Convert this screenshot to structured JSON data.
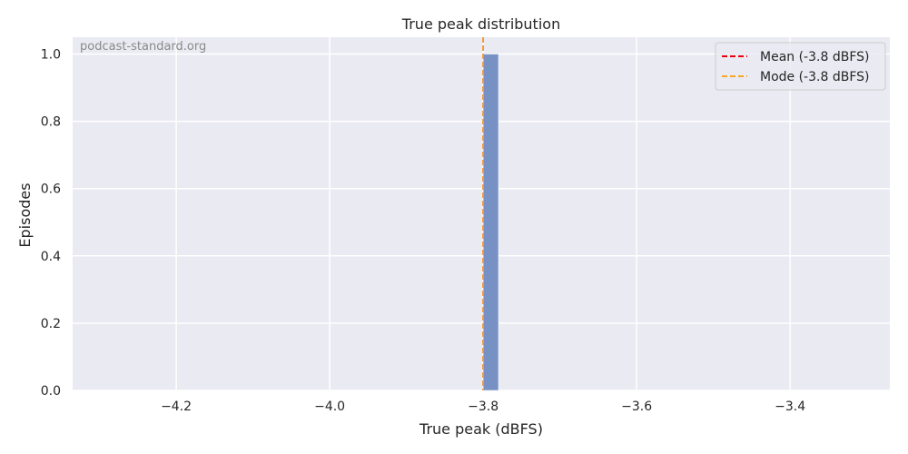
{
  "chart_data": {
    "type": "bar",
    "title": "True peak distribution",
    "xlabel": "True peak (dBFS)",
    "ylabel": "Episodes",
    "watermark": "podcast-standard.org",
    "xlim": [
      -4.335,
      -3.27
    ],
    "ylim": [
      0,
      1.05
    ],
    "xticks": [
      -4.2,
      -4.0,
      -3.8,
      -3.6,
      -3.4
    ],
    "xtick_labels": [
      "−4.2",
      "−4.0",
      "−3.8",
      "−3.6",
      "−3.4"
    ],
    "yticks": [
      0.0,
      0.2,
      0.4,
      0.6,
      0.8,
      1.0
    ],
    "ytick_labels": [
      "0.0",
      "0.2",
      "0.4",
      "0.6",
      "0.8",
      "1.0"
    ],
    "bars": [
      {
        "x_start": -3.8,
        "x_end": -3.78,
        "value": 1
      }
    ],
    "reference_lines": [
      {
        "label": "Mean (-3.8 dBFS)",
        "x": -3.8,
        "color": "#e8000b",
        "style": "dashed"
      },
      {
        "label": "Mode (-3.8 dBFS)",
        "x": -3.8,
        "color": "#f5a623",
        "style": "dashed"
      }
    ],
    "grid": true,
    "legend_position": "top-right",
    "colors": {
      "bar": "#7891c4",
      "background": "#eaeaf2",
      "grid": "#ffffff"
    }
  }
}
